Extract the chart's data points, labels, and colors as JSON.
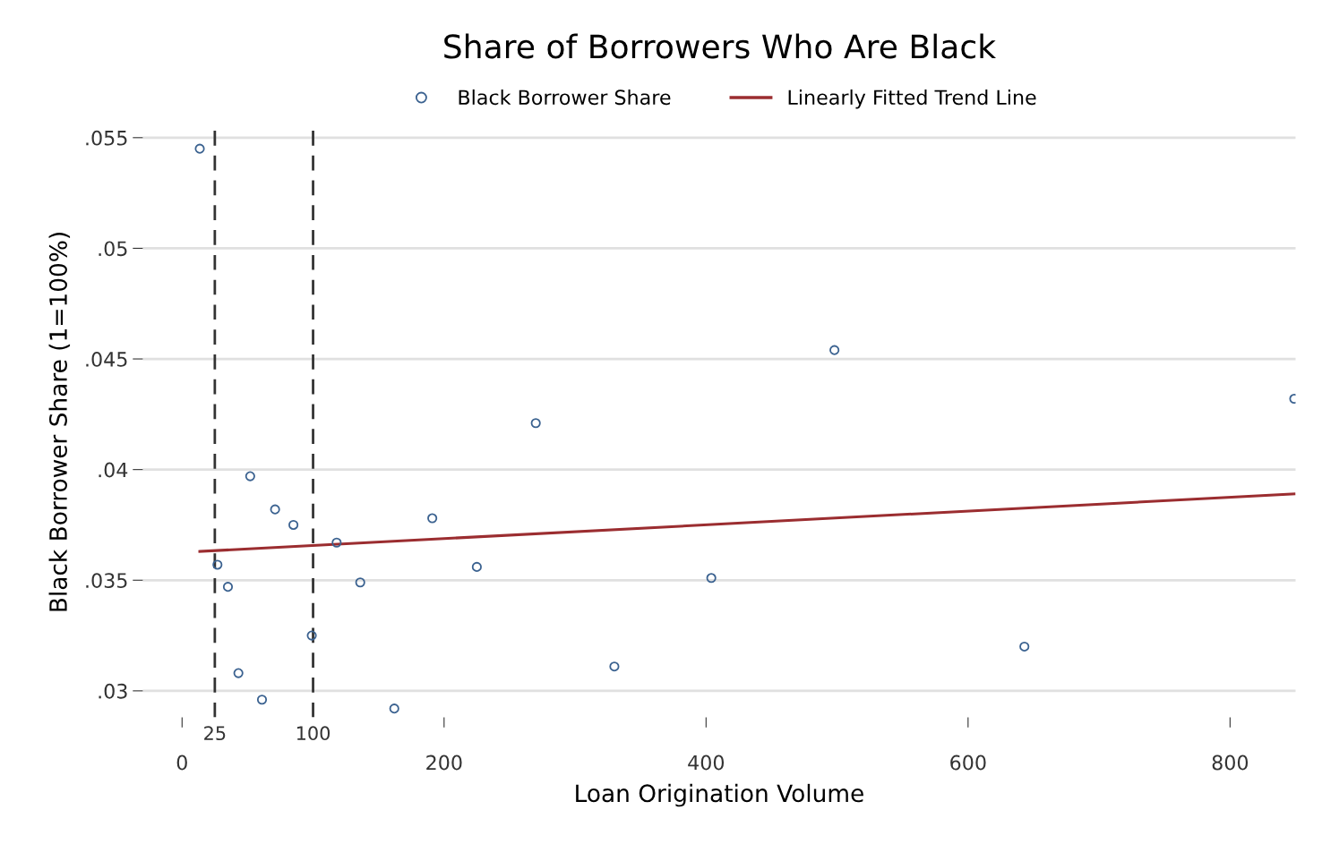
{
  "chart_data": {
    "type": "scatter",
    "title": "Share of Borrowers Who Are Black",
    "xlabel": "Loan Origination Volume",
    "ylabel": "Black Borrower Share (1=100%)",
    "series": [
      {
        "name": "Black Borrower Share",
        "color": "#3b6290",
        "marker": "circle",
        "x": [
          13.5,
          27,
          35,
          43,
          52,
          61,
          71,
          85,
          99,
          118,
          136,
          162,
          191,
          225,
          270,
          330,
          404,
          498,
          643,
          849
        ],
        "values": [
          0.0545,
          0.0357,
          0.0347,
          0.0308,
          0.0397,
          0.0296,
          0.0382,
          0.0375,
          0.0325,
          0.0367,
          0.0349,
          0.0292,
          0.0378,
          0.0356,
          0.0421,
          0.0311,
          0.0351,
          0.0454,
          0.032,
          0.0432
        ]
      },
      {
        "name": "Linearly Fitted Trend Line",
        "type": "line",
        "color": "#9b2d30",
        "marker": "none",
        "line_style": "solid",
        "x": [
          13.5,
          849
        ],
        "values": [
          0.0363,
          0.0389
        ]
      }
    ],
    "xlim": [
      -30,
      850
    ],
    "xticks": [
      0,
      200,
      400,
      600,
      800
    ],
    "ylim": [
      0.0288,
      0.0555
    ],
    "yticks": [
      {
        "value": 0.03,
        "label": ".03"
      },
      {
        "value": 0.035,
        "label": ".035"
      },
      {
        "value": 0.04,
        "label": ".04"
      },
      {
        "value": 0.045,
        "label": ".045"
      },
      {
        "value": 0.05,
        "label": ".05"
      },
      {
        "value": 0.055,
        "label": ".055"
      }
    ],
    "ref_lines": [
      {
        "axis": "x",
        "value": 25,
        "label": "25",
        "color": "#333333",
        "line_style": "dashed"
      },
      {
        "axis": "x",
        "value": 100,
        "label": "100",
        "color": "#333333",
        "line_style": "dashed"
      }
    ],
    "grid": "y",
    "legend": "top"
  }
}
